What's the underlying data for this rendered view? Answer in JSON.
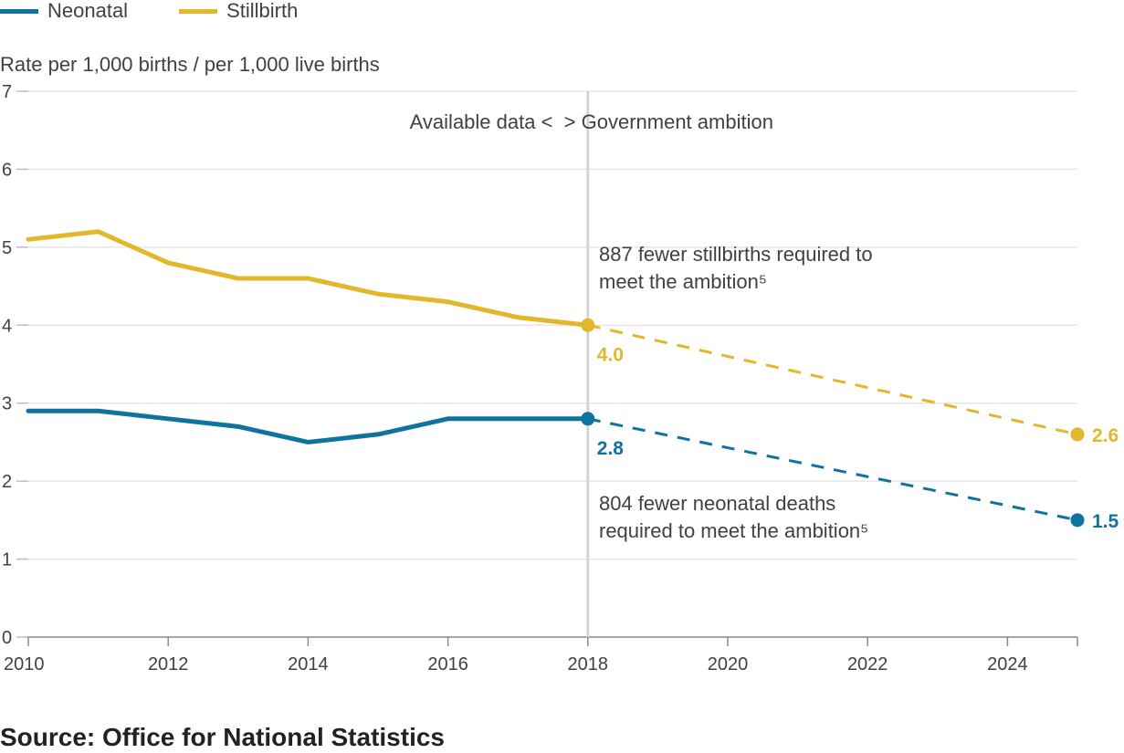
{
  "chart_data": {
    "type": "line",
    "ylabel": "Rate per 1,000 births / per 1,000 live births",
    "xlim": [
      2010,
      2025
    ],
    "ylim": [
      0,
      7
    ],
    "x_ticks": [
      2010,
      2012,
      2014,
      2016,
      2018,
      2020,
      2022,
      2024
    ],
    "y_ticks": [
      0,
      1,
      2,
      3,
      4,
      5,
      6,
      7
    ],
    "grid": true,
    "legend_position": "top-left",
    "series": [
      {
        "name": "Neonatal",
        "color": "#0f73a0",
        "x": [
          2010,
          2011,
          2012,
          2013,
          2014,
          2015,
          2016,
          2017,
          2018
        ],
        "values": [
          2.9,
          2.9,
          2.8,
          2.7,
          2.5,
          2.6,
          2.8,
          2.8,
          2.8
        ],
        "projection": {
          "x": [
            2018,
            2025
          ],
          "values": [
            2.8,
            1.5
          ]
        }
      },
      {
        "name": "Stillbirth",
        "color": "#e2b72a",
        "x": [
          2010,
          2011,
          2012,
          2013,
          2014,
          2015,
          2016,
          2017,
          2018
        ],
        "values": [
          5.1,
          5.2,
          4.8,
          4.6,
          4.6,
          4.4,
          4.3,
          4.1,
          4.0
        ],
        "projection": {
          "x": [
            2018,
            2025
          ],
          "values": [
            4.0,
            2.6
          ]
        }
      }
    ],
    "divider": {
      "x": 2018,
      "label": "Available data <  > Government ambition"
    },
    "point_labels": [
      {
        "series": "Stillbirth",
        "x": 2018,
        "y": 4.0,
        "text": "4.0"
      },
      {
        "series": "Stillbirth",
        "x": 2025,
        "y": 2.6,
        "text": "2.6"
      },
      {
        "series": "Neonatal",
        "x": 2018,
        "y": 2.8,
        "text": "2.8"
      },
      {
        "series": "Neonatal",
        "x": 2025,
        "y": 1.5,
        "text": "1.5"
      }
    ],
    "annotations": [
      {
        "lines": [
          "887 fewer stillbirths required to",
          "meet the ambition⁵"
        ]
      },
      {
        "lines": [
          "804 fewer neonatal deaths",
          "required to meet the ambition⁵"
        ]
      }
    ]
  },
  "source": "Source: Office for National Statistics"
}
